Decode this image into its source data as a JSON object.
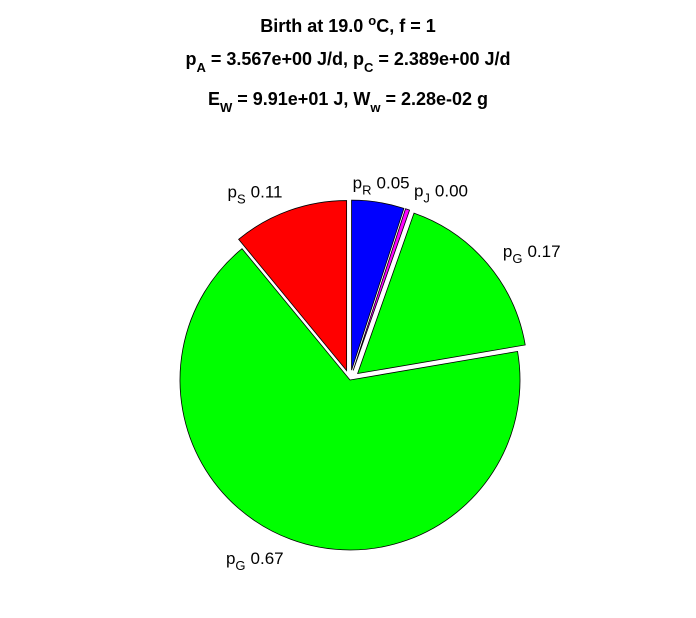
{
  "chart_data": {
    "type": "pie",
    "title": [
      [
        "Birth at 19.0 ",
        {
          "sup": "o"
        },
        "C, f = 1"
      ],
      [
        "p",
        {
          "sub": "A"
        },
        " = 3.567e+00 J/d, p",
        {
          "sub": "C"
        },
        " = 2.389e+00 J/d"
      ],
      [
        "E",
        {
          "sub": "W"
        },
        " = 9.91e+01 J, W",
        {
          "sub": "w"
        },
        " = 2.28e-02 g"
      ]
    ],
    "categories": [
      [
        "p",
        "R"
      ],
      [
        "p",
        "J"
      ],
      [
        "p",
        "G"
      ],
      [
        "p",
        "G"
      ],
      [
        "p",
        "S"
      ]
    ],
    "values": [
      0.05,
      0.004,
      0.17,
      0.67,
      0.11
    ],
    "value_labels": [
      "0.05",
      "0.00",
      "0.17",
      "0.67",
      "0.11"
    ],
    "colors": [
      "#0000ff",
      "#ff00ff",
      "#00ff00",
      "#00ff00",
      "#ff0000"
    ],
    "explode": [
      true,
      true,
      true,
      false,
      true
    ]
  }
}
